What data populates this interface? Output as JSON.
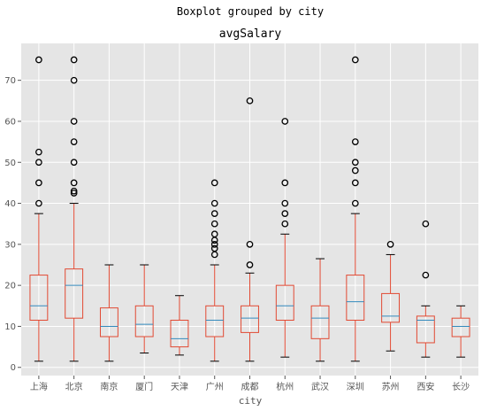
{
  "chart_data": {
    "type": "boxplot",
    "suptitle": "Boxplot grouped by city",
    "title": "avgSalary",
    "xlabel": "city",
    "ylabel": "",
    "ylim": [
      -2,
      79
    ],
    "yticks": [
      0,
      10,
      20,
      30,
      40,
      50,
      60,
      70
    ],
    "grid": true,
    "colors": {
      "background": "#e5e5e5",
      "grid": "#ffffff",
      "box": "#e24a33",
      "median": "#348abd",
      "flier": "#000000",
      "cap": "#000000"
    },
    "groups": [
      {
        "category": "上海",
        "whislo": 1.5,
        "q1": 11.5,
        "med": 15,
        "q3": 22.5,
        "whishi": 37.5,
        "fliers": [
          40,
          45,
          50,
          52.5,
          75
        ]
      },
      {
        "category": "北京",
        "whislo": 1.5,
        "q1": 12,
        "med": 20,
        "q3": 24,
        "whishi": 40,
        "fliers": [
          42.5,
          43,
          45,
          50,
          55,
          60,
          70,
          75
        ]
      },
      {
        "category": "南京",
        "whislo": 1.5,
        "q1": 7.5,
        "med": 10,
        "q3": 14.5,
        "whishi": 25,
        "fliers": []
      },
      {
        "category": "厦门",
        "whislo": 3.5,
        "q1": 7.5,
        "med": 10.5,
        "q3": 15,
        "whishi": 25,
        "fliers": []
      },
      {
        "category": "天津",
        "whislo": 3,
        "q1": 5,
        "med": 7,
        "q3": 11.5,
        "whishi": 17.5,
        "fliers": []
      },
      {
        "category": "广州",
        "whislo": 1.5,
        "q1": 7.5,
        "med": 11.5,
        "q3": 15,
        "whishi": 25,
        "fliers": [
          27.5,
          29,
          30,
          31,
          32.5,
          35,
          37.5,
          40,
          45
        ]
      },
      {
        "category": "成都",
        "whislo": 1.5,
        "q1": 8.5,
        "med": 12,
        "q3": 15,
        "whishi": 23,
        "fliers": [
          25,
          30,
          65
        ]
      },
      {
        "category": "杭州",
        "whislo": 2.5,
        "q1": 11.5,
        "med": 15,
        "q3": 20,
        "whishi": 32.5,
        "fliers": [
          35,
          37.5,
          40,
          45,
          60
        ]
      },
      {
        "category": "武汉",
        "whislo": 1.5,
        "q1": 7,
        "med": 12,
        "q3": 15,
        "whishi": 26.5,
        "fliers": []
      },
      {
        "category": "深圳",
        "whislo": 1.5,
        "q1": 11.5,
        "med": 16,
        "q3": 22.5,
        "whishi": 37.5,
        "fliers": [
          40,
          45,
          48,
          50,
          55,
          75
        ]
      },
      {
        "category": "苏州",
        "whislo": 4,
        "q1": 11,
        "med": 12.5,
        "q3": 18,
        "whishi": 27.5,
        "fliers": [
          30
        ]
      },
      {
        "category": "西安",
        "whislo": 2.5,
        "q1": 6,
        "med": 11.5,
        "q3": 12.5,
        "whishi": 15,
        "fliers": [
          22.5,
          35
        ]
      },
      {
        "category": "长沙",
        "whislo": 2.5,
        "q1": 7.5,
        "med": 10,
        "q3": 12,
        "whishi": 15,
        "fliers": []
      }
    ]
  }
}
